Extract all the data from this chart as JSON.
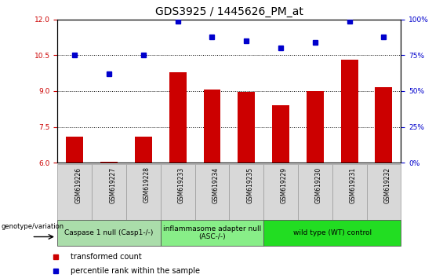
{
  "title": "GDS3925 / 1445626_PM_at",
  "samples": [
    "GSM619226",
    "GSM619227",
    "GSM619228",
    "GSM619233",
    "GSM619234",
    "GSM619235",
    "GSM619229",
    "GSM619230",
    "GSM619231",
    "GSM619232"
  ],
  "bar_values": [
    7.1,
    6.05,
    7.1,
    9.8,
    9.05,
    8.95,
    8.4,
    9.0,
    10.3,
    9.15
  ],
  "dot_values": [
    75,
    62,
    75,
    99,
    88,
    85,
    80,
    84,
    99,
    88
  ],
  "ylim_left": [
    6,
    12
  ],
  "ylim_right": [
    0,
    100
  ],
  "yticks_left": [
    6,
    7.5,
    9,
    10.5,
    12
  ],
  "yticks_right": [
    0,
    25,
    50,
    75,
    100
  ],
  "bar_color": "#cc0000",
  "dot_color": "#0000cc",
  "groups": [
    {
      "label": "Caspase 1 null (Casp1-/-)",
      "start": 0,
      "end": 3,
      "color": "#aaddaa"
    },
    {
      "label": "inflammasome adapter null\n(ASC-/-)",
      "start": 3,
      "end": 6,
      "color": "#88ee88"
    },
    {
      "label": "wild type (WT) control",
      "start": 6,
      "end": 10,
      "color": "#22dd22"
    }
  ],
  "legend_items": [
    {
      "label": "transformed count",
      "color": "#cc0000"
    },
    {
      "label": "percentile rank within the sample",
      "color": "#0000cc"
    }
  ],
  "group_label_fontsize": 6.5,
  "tick_fontsize": 6.5,
  "title_fontsize": 10
}
